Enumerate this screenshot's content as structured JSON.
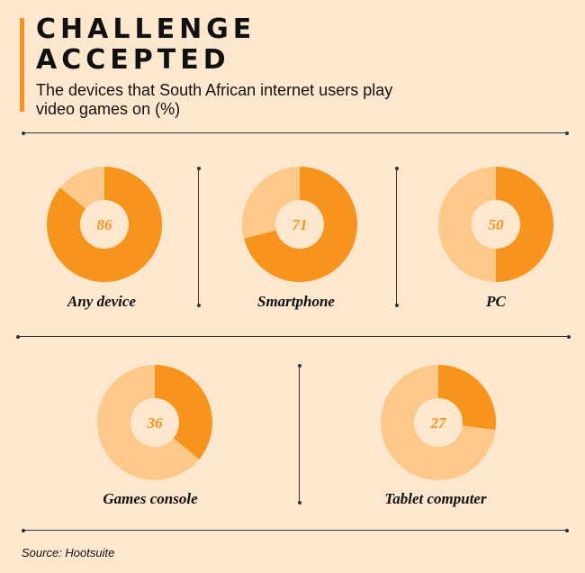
{
  "header": {
    "title_line1": "CHALLENGE",
    "title_line2": "ACCEPTED",
    "subtitle": "The devices that South African internet users play video games on (%)"
  },
  "chart_data": {
    "type": "pie",
    "title": "CHALLENGE ACCEPTED",
    "subtitle": "The devices that South African internet users play video games on (%)",
    "unit": "%",
    "categories": [
      "Any device",
      "Smartphone",
      "PC",
      "Games console",
      "Tablet computer"
    ],
    "values": [
      86,
      71,
      50,
      36,
      27
    ]
  },
  "items": [
    {
      "label": "Any device",
      "value_text": "86"
    },
    {
      "label": "Smartphone",
      "value_text": "71"
    },
    {
      "label": "PC",
      "value_text": "50"
    },
    {
      "label": "Games console",
      "value_text": "36"
    },
    {
      "label": "Tablet computer",
      "value_text": "27"
    }
  ],
  "source": "Source: Hootsuite",
  "colors": {
    "background": "#FDE8CF",
    "filled": "#F7941D",
    "remainder": "#FCC98B",
    "center": "#FDE8CF",
    "value_text": "#F7941D"
  }
}
